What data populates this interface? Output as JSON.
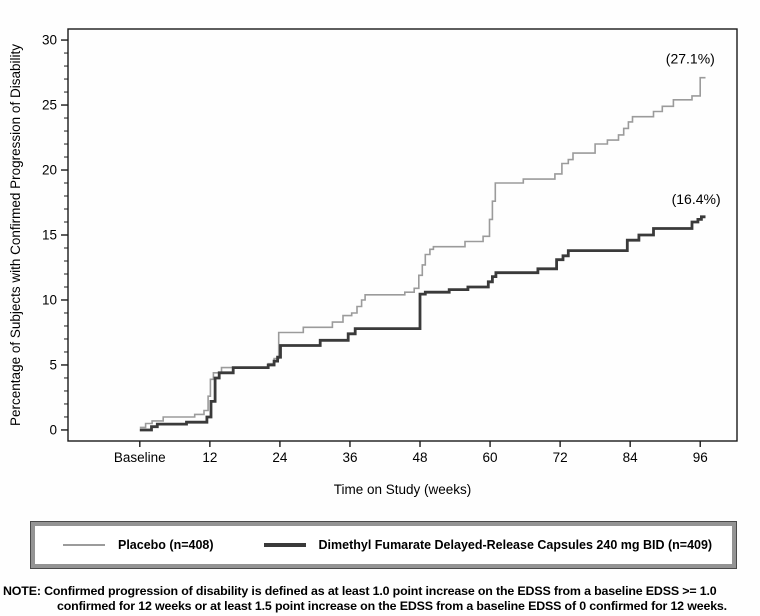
{
  "figure": {
    "x_axis_title": "Time on Study (weeks)",
    "y_axis_title": "Percentage of Subjects with Confirmed Progression of Disability"
  },
  "legend": {
    "items": [
      {
        "label": "Placebo (n=408)",
        "color": "#9b9b9b",
        "thickness": 2
      },
      {
        "label": "Dimethyl Fumarate Delayed-Release Capsules 240 mg BID (n=409)",
        "color": "#3a3a3a",
        "thickness": 4
      }
    ]
  },
  "note": {
    "line1": "NOTE: Confirmed progression of disability is defined as at least 1.0 point increase on the EDSS from a baseline EDSS >= 1.0",
    "line2": "confirmed for 12 weeks or at least 1.5 point increase on the EDSS from a baseline EDSS of 0 confirmed for 12 weeks."
  },
  "chart_data": {
    "type": "line",
    "subtype": "kaplan-meier-step",
    "title": "",
    "xlabel": "Time on Study (weeks)",
    "ylabel": "Percentage of Subjects with Confirmed Progression of Disability",
    "grid": false,
    "legend_position": "bottom-box",
    "xlim_weeks": [
      -12.3,
      102.3
    ],
    "ylim": [
      -0.85,
      30.85
    ],
    "x_ticks": [
      {
        "week": 0,
        "label": "Baseline"
      },
      {
        "week": 12,
        "label": "12"
      },
      {
        "week": 24,
        "label": "24"
      },
      {
        "week": 36,
        "label": "36"
      },
      {
        "week": 48,
        "label": "48"
      },
      {
        "week": 60,
        "label": "60"
      },
      {
        "week": 72,
        "label": "72"
      },
      {
        "week": 84,
        "label": "84"
      },
      {
        "week": 96,
        "label": "96"
      }
    ],
    "y_ticks": [
      0,
      5,
      10,
      15,
      20,
      25,
      30
    ],
    "y_minor_tick_step": 1,
    "series": [
      {
        "name": "Placebo (n=408)",
        "color": "#9b9b9b",
        "stroke_width": 1.6,
        "end_week": 96.9,
        "final_percent": 27.1,
        "points": [
          [
            0,
            0.2
          ],
          [
            1,
            0.5
          ],
          [
            2.1,
            0.7
          ],
          [
            4,
            1.0
          ],
          [
            9.4,
            1.2
          ],
          [
            11,
            1.5
          ],
          [
            11.7,
            2.6
          ],
          [
            12.1,
            3.9
          ],
          [
            12.6,
            4.4
          ],
          [
            14,
            4.8
          ],
          [
            22,
            5.1
          ],
          [
            23,
            5.5
          ],
          [
            23.8,
            7.5
          ],
          [
            28,
            7.9
          ],
          [
            33,
            8.3
          ],
          [
            34.8,
            8.8
          ],
          [
            36.3,
            9.0
          ],
          [
            37.2,
            9.5
          ],
          [
            38,
            10.0
          ],
          [
            38.6,
            10.4
          ],
          [
            45.4,
            10.6
          ],
          [
            47,
            10.9
          ],
          [
            47.8,
            11.9
          ],
          [
            48.4,
            12.7
          ],
          [
            48.9,
            13.5
          ],
          [
            49.7,
            13.9
          ],
          [
            50.3,
            14.1
          ],
          [
            55.7,
            14.5
          ],
          [
            58.8,
            14.9
          ],
          [
            59.9,
            16.2
          ],
          [
            60.4,
            17.6
          ],
          [
            60.9,
            19.0
          ],
          [
            65.7,
            19.3
          ],
          [
            71.1,
            19.7
          ],
          [
            72.3,
            20.5
          ],
          [
            73.4,
            20.8
          ],
          [
            74.2,
            21.3
          ],
          [
            78,
            22.0
          ],
          [
            80.1,
            22.3
          ],
          [
            82,
            22.7
          ],
          [
            82.9,
            23.2
          ],
          [
            83.7,
            23.7
          ],
          [
            84.4,
            24.1
          ],
          [
            88,
            24.5
          ],
          [
            89.5,
            24.9
          ],
          [
            91.4,
            25.4
          ],
          [
            94.6,
            25.7
          ],
          [
            96,
            27.1
          ]
        ]
      },
      {
        "name": "Dimethyl Fumarate Delayed-Release Capsules 240 mg BID (n=409)",
        "color": "#3a3a3a",
        "stroke_width": 2.8,
        "end_week": 96.9,
        "final_percent": 16.4,
        "points": [
          [
            0,
            0.0
          ],
          [
            2,
            0.25
          ],
          [
            3,
            0.45
          ],
          [
            8,
            0.6
          ],
          [
            11.5,
            1.0
          ],
          [
            12.2,
            2.2
          ],
          [
            12.9,
            4.0
          ],
          [
            13.6,
            4.4
          ],
          [
            16,
            4.8
          ],
          [
            22,
            5.0
          ],
          [
            23,
            5.3
          ],
          [
            23.6,
            5.6
          ],
          [
            24.1,
            6.5
          ],
          [
            30.9,
            6.9
          ],
          [
            35.7,
            7.4
          ],
          [
            36.9,
            7.8
          ],
          [
            48,
            10.45
          ],
          [
            48.9,
            10.6
          ],
          [
            53,
            10.8
          ],
          [
            56.2,
            11.0
          ],
          [
            59.7,
            11.4
          ],
          [
            60.4,
            11.8
          ],
          [
            61,
            12.1
          ],
          [
            68.2,
            12.4
          ],
          [
            71.4,
            13.1
          ],
          [
            72.5,
            13.4
          ],
          [
            73.4,
            13.8
          ],
          [
            83.5,
            14.6
          ],
          [
            85.5,
            15.0
          ],
          [
            88,
            15.5
          ],
          [
            94.6,
            16.0
          ],
          [
            95.6,
            16.2
          ],
          [
            96.2,
            16.4
          ]
        ]
      }
    ],
    "annotations": [
      {
        "name": "placebo-endpoint-label",
        "text": "(27.1%)",
        "week": 94.3,
        "value": 28.2
      },
      {
        "name": "dmf-endpoint-label",
        "text": "(16.4%)",
        "week": 95.3,
        "value": 17.4
      }
    ]
  }
}
